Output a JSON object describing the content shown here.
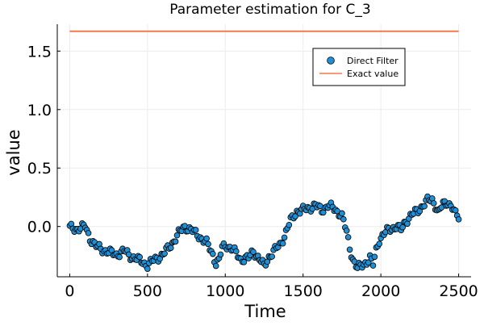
{
  "chart_data": {
    "type": "scatter",
    "title": "Parameter estimation for C_3",
    "xlabel": "Time",
    "ylabel": "value",
    "xlim": [
      -80,
      2580
    ],
    "ylim": [
      -0.43,
      1.73
    ],
    "xticks": [
      0,
      500,
      1000,
      1500,
      2000,
      2500
    ],
    "yticks": [
      0.0,
      0.5,
      1.0,
      1.5
    ],
    "xtick_labels": [
      "0",
      "500",
      "1000",
      "1500",
      "2000",
      "2500"
    ],
    "ytick_labels": [
      "0.0",
      "0.5",
      "1.0",
      "1.5"
    ],
    "grid": true,
    "legend_position": "top-right",
    "series": [
      {
        "name": "Direct Filter",
        "kind": "scatter",
        "color": "#1f8fd6",
        "edge_color": "#000000",
        "keypoints": [
          [
            0,
            -0.01
          ],
          [
            50,
            -0.02
          ],
          [
            100,
            0.0
          ],
          [
            130,
            -0.1
          ],
          [
            170,
            -0.17
          ],
          [
            250,
            -0.22
          ],
          [
            300,
            -0.24
          ],
          [
            350,
            -0.21
          ],
          [
            400,
            -0.26
          ],
          [
            450,
            -0.29
          ],
          [
            500,
            -0.33
          ],
          [
            530,
            -0.3
          ],
          [
            560,
            -0.27
          ],
          [
            600,
            -0.24
          ],
          [
            650,
            -0.16
          ],
          [
            700,
            -0.06
          ],
          [
            740,
            0.0
          ],
          [
            780,
            -0.03
          ],
          [
            830,
            -0.08
          ],
          [
            880,
            -0.14
          ],
          [
            920,
            -0.24
          ],
          [
            940,
            -0.31
          ],
          [
            960,
            -0.29
          ],
          [
            980,
            -0.18
          ],
          [
            1010,
            -0.16
          ],
          [
            1050,
            -0.2
          ],
          [
            1100,
            -0.28
          ],
          [
            1150,
            -0.27
          ],
          [
            1180,
            -0.21
          ],
          [
            1220,
            -0.28
          ],
          [
            1250,
            -0.34
          ],
          [
            1280,
            -0.26
          ],
          [
            1320,
            -0.2
          ],
          [
            1350,
            -0.16
          ],
          [
            1380,
            -0.08
          ],
          [
            1420,
            0.05
          ],
          [
            1460,
            0.13
          ],
          [
            1500,
            0.14
          ],
          [
            1540,
            0.16
          ],
          [
            1580,
            0.18
          ],
          [
            1620,
            0.14
          ],
          [
            1660,
            0.18
          ],
          [
            1700,
            0.15
          ],
          [
            1730,
            0.12
          ],
          [
            1750,
            0.09
          ],
          [
            1780,
            -0.05
          ],
          [
            1800,
            -0.18
          ],
          [
            1820,
            -0.28
          ],
          [
            1850,
            -0.36
          ],
          [
            1880,
            -0.33
          ],
          [
            1910,
            -0.3
          ],
          [
            1930,
            -0.27
          ],
          [
            1950,
            -0.33
          ],
          [
            1970,
            -0.2
          ],
          [
            1990,
            -0.11
          ],
          [
            2030,
            -0.05
          ],
          [
            2060,
            -0.02
          ],
          [
            2100,
            0.0
          ],
          [
            2130,
            -0.03
          ],
          [
            2160,
            0.05
          ],
          [
            2200,
            0.1
          ],
          [
            2240,
            0.14
          ],
          [
            2270,
            0.18
          ],
          [
            2300,
            0.22
          ],
          [
            2330,
            0.23
          ],
          [
            2350,
            0.18
          ],
          [
            2370,
            0.12
          ],
          [
            2400,
            0.19
          ],
          [
            2430,
            0.21
          ],
          [
            2460,
            0.16
          ],
          [
            2480,
            0.1
          ],
          [
            2500,
            0.08
          ]
        ]
      },
      {
        "name": "Exact value",
        "kind": "line",
        "color": "#ee7b4f",
        "x": [
          0,
          2500
        ],
        "values": [
          1.67,
          1.67
        ]
      }
    ]
  }
}
